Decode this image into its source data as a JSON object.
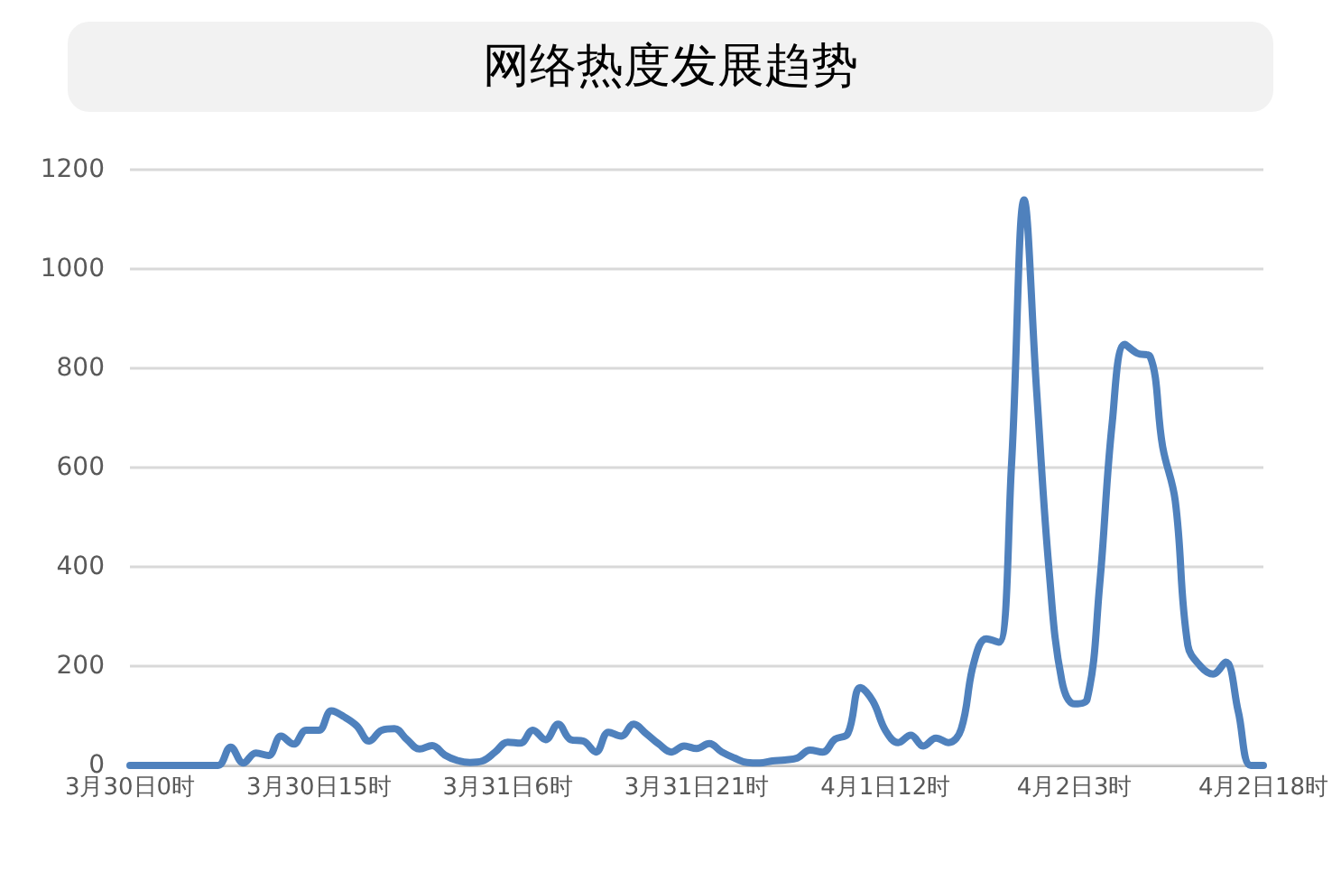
{
  "chart_data": {
    "type": "line",
    "title": "网络热度发展趋势",
    "categories": [
      "3月30日0时",
      null,
      null,
      null,
      null,
      null,
      null,
      null,
      null,
      null,
      null,
      null,
      null,
      null,
      null,
      "3月30日15时",
      null,
      null,
      null,
      null,
      null,
      null,
      null,
      null,
      null,
      null,
      null,
      null,
      null,
      null,
      "3月31日6时",
      null,
      null,
      null,
      null,
      null,
      null,
      null,
      null,
      null,
      null,
      null,
      null,
      null,
      null,
      "3月31日21时",
      null,
      null,
      null,
      null,
      null,
      null,
      null,
      null,
      null,
      null,
      null,
      null,
      null,
      null,
      "4月1日12时",
      null,
      null,
      null,
      null,
      null,
      null,
      null,
      null,
      null,
      null,
      null,
      null,
      null,
      null,
      "4月2日3时",
      null,
      null,
      null,
      null,
      null,
      null,
      null,
      null,
      null,
      null,
      null,
      null,
      null,
      null,
      "4月2日18时"
    ],
    "series": [
      {
        "color": "#4f81bd",
        "values": [
          0,
          0,
          0,
          0,
          0,
          0,
          0,
          0,
          37,
          5,
          25,
          20,
          59,
          43,
          71,
          71,
          110,
          98,
          80,
          49,
          71,
          74,
          52,
          33,
          40,
          21,
          10,
          6,
          9,
          27,
          47,
          45,
          71,
          52,
          83,
          52,
          49,
          27,
          67,
          59,
          83,
          64,
          43,
          27,
          39,
          34,
          44,
          27,
          15,
          6,
          5,
          9,
          11,
          15,
          31,
          27,
          53,
          64,
          157,
          129,
          70,
          46,
          61,
          39,
          55,
          46,
          73,
          206,
          255,
          248,
          606,
          1139,
          752,
          388,
          170,
          124,
          133,
          364,
          691,
          848,
          830,
          824,
          642,
          533,
          242,
          200,
          184,
          208,
          109,
          0,
          0
        ]
      }
    ],
    "ylim": [
      0,
      1200
    ],
    "yticks": [
      0,
      200,
      400,
      600,
      800,
      1000,
      1200
    ],
    "grid": "y",
    "marker": "none",
    "line_style": "solid"
  }
}
